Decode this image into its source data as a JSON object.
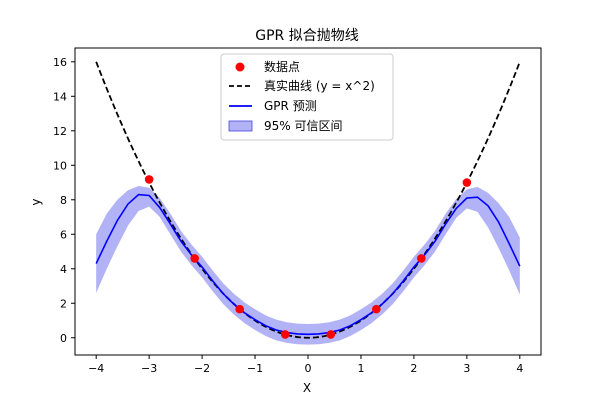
{
  "chart_data": {
    "type": "line",
    "title": "GPR 拟合抛物线",
    "xlabel": "X",
    "ylabel": "y",
    "xlim": [
      -4.4,
      4.4
    ],
    "ylim": [
      -1.0,
      16.8
    ],
    "xticks": [
      -4,
      -3,
      -2,
      -1,
      0,
      1,
      2,
      3,
      4
    ],
    "yticks": [
      0,
      2,
      4,
      6,
      8,
      10,
      12,
      14,
      16
    ],
    "legend_position": "top-center",
    "grid": false,
    "colors": {
      "data_points": "#ff0000",
      "true_curve": "#000000",
      "prediction": "#0000ff",
      "interval": "#6666ee"
    },
    "series": [
      {
        "name": "数据点",
        "kind": "scatter",
        "x": [
          -3.0,
          -2.14,
          -1.29,
          -0.43,
          0.43,
          1.29,
          2.14,
          3.0
        ],
        "y": [
          9.18,
          4.6,
          1.66,
          0.19,
          0.19,
          1.66,
          4.6,
          9.0
        ]
      },
      {
        "name": "真实曲线 (y = x^2)",
        "kind": "line",
        "style": "dashed",
        "function": "x^2",
        "x_range": [
          -4,
          4
        ]
      },
      {
        "name": "GPR 预测",
        "kind": "line",
        "x": [
          -4.0,
          -3.8,
          -3.6,
          -3.4,
          -3.2,
          -3.0,
          -2.8,
          -2.6,
          -2.4,
          -2.2,
          -2.0,
          -1.8,
          -1.6,
          -1.4,
          -1.2,
          -1.0,
          -0.8,
          -0.6,
          -0.4,
          -0.2,
          0.0,
          0.2,
          0.4,
          0.6,
          0.8,
          1.0,
          1.2,
          1.4,
          1.6,
          1.8,
          2.0,
          2.2,
          2.4,
          2.6,
          2.8,
          3.0,
          3.2,
          3.4,
          3.6,
          3.8,
          4.0
        ],
        "y": [
          4.3,
          5.6,
          6.8,
          7.75,
          8.3,
          8.25,
          7.55,
          6.6,
          5.6,
          4.8,
          4.1,
          3.3,
          2.55,
          1.95,
          1.45,
          1.05,
          0.7,
          0.45,
          0.3,
          0.22,
          0.2,
          0.22,
          0.3,
          0.45,
          0.7,
          1.05,
          1.45,
          1.95,
          2.55,
          3.3,
          4.1,
          4.8,
          5.6,
          6.6,
          7.5,
          8.1,
          8.15,
          7.65,
          6.7,
          5.45,
          4.15
        ]
      },
      {
        "name": "95% 可信区间",
        "kind": "band",
        "x": [
          -4.0,
          -3.8,
          -3.6,
          -3.4,
          -3.2,
          -3.0,
          -2.8,
          -2.6,
          -2.4,
          -2.2,
          -2.0,
          -1.8,
          -1.6,
          -1.4,
          -1.2,
          -1.0,
          -0.8,
          -0.6,
          -0.4,
          -0.2,
          0.0,
          0.2,
          0.4,
          0.6,
          0.8,
          1.0,
          1.2,
          1.4,
          1.6,
          1.8,
          2.0,
          2.2,
          2.4,
          2.6,
          2.8,
          3.0,
          3.2,
          3.4,
          3.6,
          3.8,
          4.0
        ],
        "lower": [
          2.6,
          4.0,
          5.3,
          6.5,
          7.35,
          7.6,
          7.0,
          6.0,
          5.0,
          4.2,
          3.5,
          2.7,
          1.95,
          1.35,
          0.85,
          0.45,
          0.1,
          -0.15,
          -0.3,
          -0.38,
          -0.4,
          -0.38,
          -0.3,
          -0.15,
          0.1,
          0.45,
          0.85,
          1.35,
          1.95,
          2.7,
          3.5,
          4.2,
          5.0,
          6.0,
          6.95,
          7.5,
          7.3,
          6.4,
          5.2,
          3.9,
          2.5
        ],
        "upper": [
          6.0,
          7.2,
          8.0,
          8.55,
          8.8,
          8.7,
          8.1,
          7.2,
          6.2,
          5.4,
          4.7,
          3.9,
          3.15,
          2.55,
          2.05,
          1.65,
          1.3,
          1.05,
          0.9,
          0.82,
          0.8,
          0.82,
          0.9,
          1.05,
          1.3,
          1.65,
          2.05,
          2.55,
          3.15,
          3.9,
          4.7,
          5.4,
          6.2,
          7.2,
          8.05,
          8.6,
          8.75,
          8.4,
          7.8,
          7.0,
          5.8
        ]
      }
    ]
  }
}
